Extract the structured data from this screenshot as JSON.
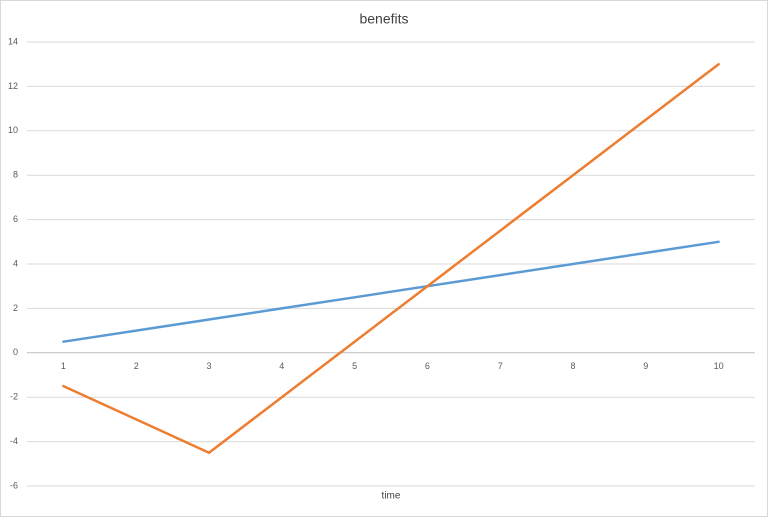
{
  "chart_data": {
    "type": "line",
    "title": "benefits",
    "x_label": "time",
    "categories": [
      "1",
      "2",
      "3",
      "4",
      "5",
      "6",
      "7",
      "8",
      "9",
      "10"
    ],
    "series": [
      {
        "color": "#5b9bd5",
        "values": [
          0.5,
          1,
          1.5,
          2,
          2.5,
          3,
          3.5,
          4,
          4.5,
          5
        ]
      },
      {
        "color": "#ed7d31",
        "values": [
          -1.5,
          -3,
          -4.5,
          -2,
          0.5,
          3,
          5.5,
          8,
          10.5,
          13
        ]
      }
    ],
    "ylim": [
      -6,
      14
    ],
    "yticks": [
      -6,
      -4,
      -2,
      0,
      2,
      4,
      6,
      8,
      10,
      12,
      14
    ],
    "grid": true
  }
}
